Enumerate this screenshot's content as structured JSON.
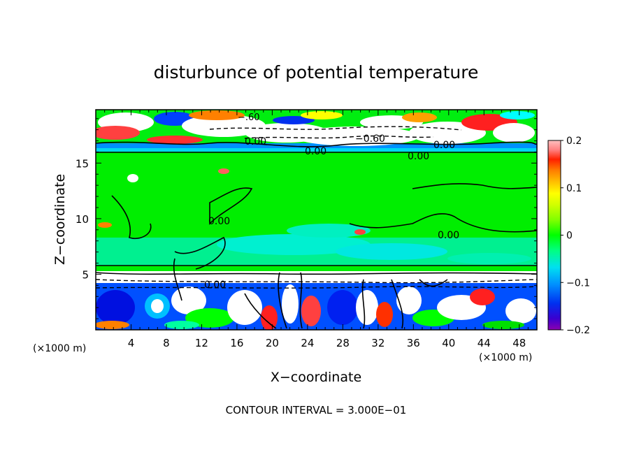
{
  "chart_data": {
    "type": "heatmap",
    "title": "disturbunce of potential temperature",
    "xlabel": "X−coordinate",
    "ylabel": "Z−coordinate",
    "x_unit": "(×1000 m)",
    "z_unit": "(×1000 m)",
    "xlim": [
      0,
      50
    ],
    "ylim": [
      0,
      19.8
    ],
    "x_ticks": [
      "4",
      "8",
      "12",
      "16",
      "20",
      "24",
      "28",
      "32",
      "36",
      "40",
      "44",
      "48"
    ],
    "y_ticks": [
      "5",
      "10",
      "15"
    ],
    "colorbar": {
      "ticks": [
        "0.2",
        "0.1",
        "0",
        "−0.1",
        "−0.2"
      ],
      "range": [
        -0.2,
        0.2
      ],
      "colors": [
        "#8b00b0",
        "#3a00d0",
        "#0030f0",
        "#0090ff",
        "#00e0f0",
        "#00f0c0",
        "#00ff80",
        "#00ff00",
        "#80ff00",
        "#d0ff00",
        "#ffff00",
        "#ffc000",
        "#ff8000",
        "#ff3000",
        "#ff0000",
        "#ff8080",
        "#ffb8b8"
      ]
    },
    "contour_labels": [
      "0.00",
      "0.00",
      "−0.60",
      "0.00",
      "0.00",
      "0.00",
      "0.00",
      "0.00",
      "−.60"
    ],
    "footer": "CONTOUR INTERVAL = 3.000E−01"
  }
}
